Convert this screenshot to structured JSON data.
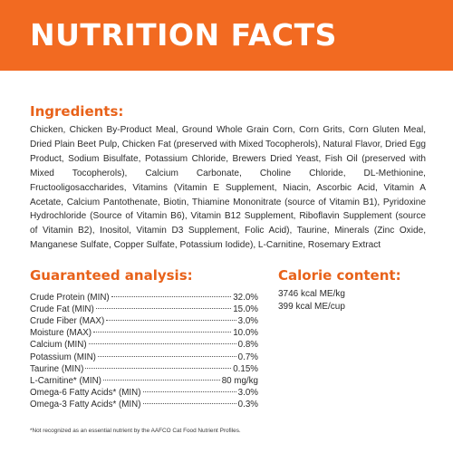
{
  "banner": {
    "title": "NUTRITION FACTS",
    "color": "#f26a21"
  },
  "ingredients": {
    "heading": "Ingredients:",
    "text": "Chicken, Chicken By-Product Meal, Ground Whole Grain Corn, Corn Grits, Corn Gluten Meal, Dried Plain Beet Pulp, Chicken Fat (preserved with Mixed Tocopherols), Natural Flavor, Dried Egg Product, Sodium Bisulfate, Potassium Chloride, Brewers Dried Yeast, Fish Oil (preserved with Mixed Tocopherols), Calcium Carbonate, Choline Chloride, DL-Methionine, Fructooligosaccharides, Vitamins (Vitamin E Supplement, Niacin, Ascorbic Acid, Vitamin A Acetate, Calcium Pantothenate, Biotin, Thiamine Mononitrate (source of Vitamin B1), Pyridoxine Hydrochloride (Source of Vitamin B6), Vitamin B12 Supplement, Riboflavin Supplement (source of Vitamin B2), Inositol, Vitamin D3 Supplement, Folic Acid), Taurine, Minerals (Zinc Oxide, Manganese Sulfate, Copper Sulfate, Potassium Iodide), L-Carnitine, Rosemary Extract"
  },
  "guaranteed_analysis": {
    "heading": "Guaranteed analysis:",
    "rows": [
      {
        "label": "Crude Protein (MIN)",
        "value": "32.0%"
      },
      {
        "label": "Crude Fat (MIN)",
        "value": "15.0%"
      },
      {
        "label": "Crude Fiber (MAX)",
        "value": "3.0%"
      },
      {
        "label": "Moisture (MAX)",
        "value": "10.0%"
      },
      {
        "label": "Calcium (MIN)",
        "value": "0.8%"
      },
      {
        "label": "Potassium (MIN)",
        "value": "0.7%"
      },
      {
        "label": "Taurine (MIN)",
        "value": "0.15%"
      },
      {
        "label": "L-Carnitine* (MIN)",
        "value": "80 mg/kg"
      },
      {
        "label": "Omega-6 Fatty Acids* (MIN)",
        "value": "3.0%"
      },
      {
        "label": "Omega-3 Fatty Acids* (MIN)",
        "value": "0.3%"
      }
    ]
  },
  "calorie_content": {
    "heading": "Calorie content:",
    "items": [
      "3746 kcal ME/kg",
      "399 kcal ME/cup"
    ]
  },
  "footnote": "*Not recognized as an essential nutrient by the AAFCO Cat Food Nutrient Profiles."
}
